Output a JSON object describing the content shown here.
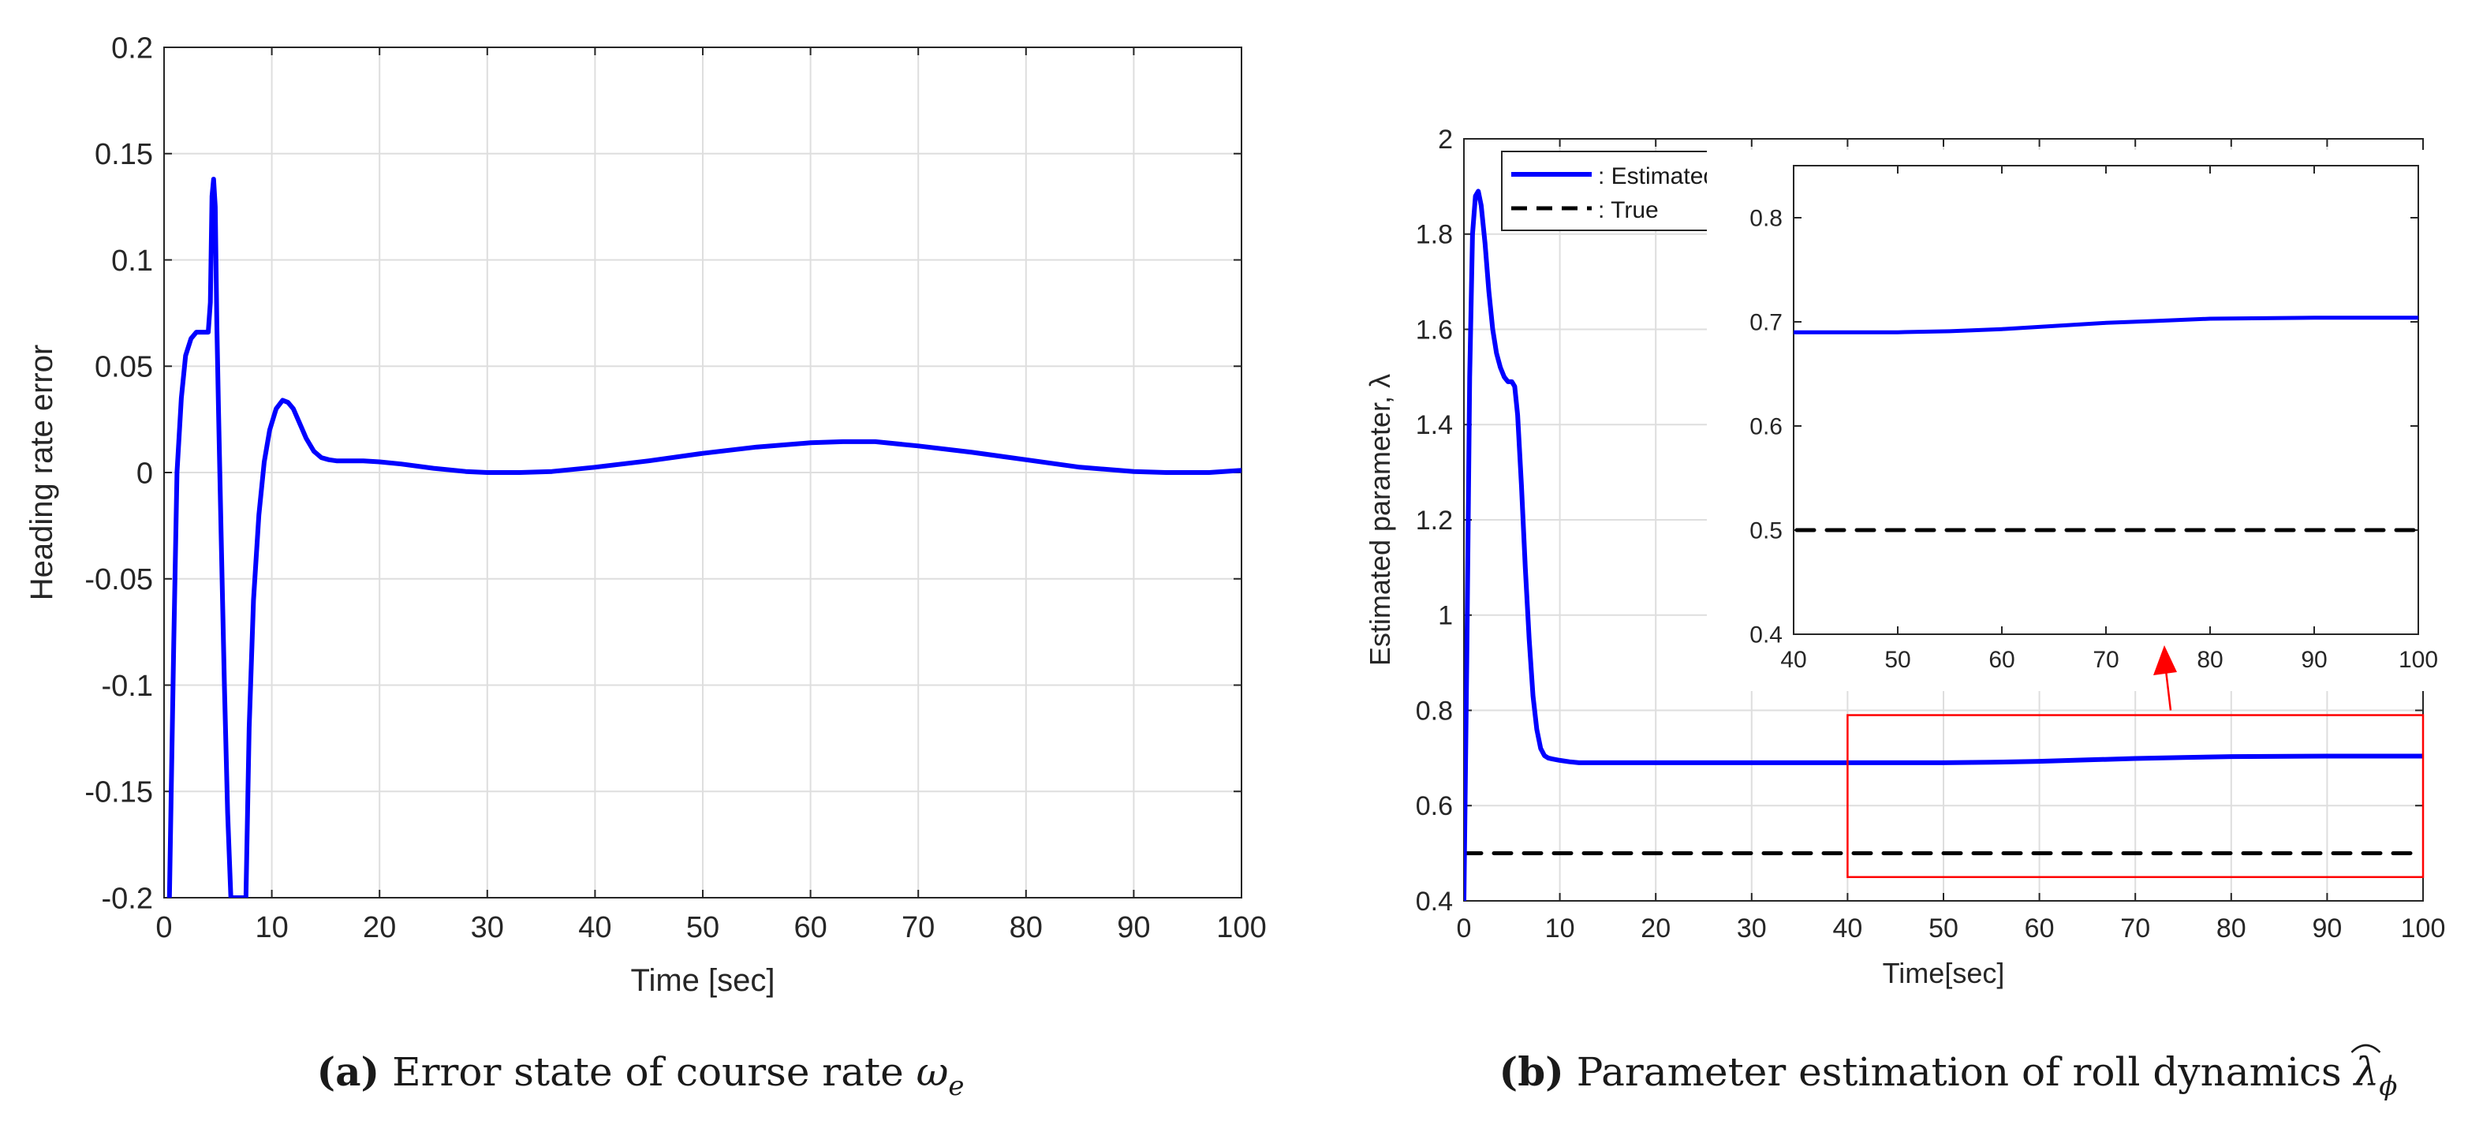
{
  "chart_data": [
    {
      "panel": "a",
      "type": "line",
      "title": "",
      "xlabel": "Time [sec]",
      "ylabel": "Heading rate error",
      "xlim": [
        0,
        100
      ],
      "ylim": [
        -0.2,
        0.2
      ],
      "xticks": [
        "0",
        "10",
        "20",
        "30",
        "40",
        "50",
        "60",
        "70",
        "80",
        "90",
        "100"
      ],
      "yticks": [
        "-0.2",
        "-0.15",
        "-0.1",
        "-0.05",
        "0",
        "0.05",
        "0.1",
        "0.15",
        "0.2"
      ],
      "grid": true,
      "line_color": "#0000ff",
      "caption": {
        "letter": "(a)",
        "text": " Error state of course rate ",
        "symbol": "ω",
        "subscript": "e"
      },
      "series": [
        {
          "x": [
            0.5,
            0.9,
            1.2,
            1.6,
            2.0,
            2.5,
            3.0,
            3.4,
            3.8,
            4.1,
            4.3,
            4.45,
            4.6,
            4.75,
            4.9,
            5.05,
            5.3,
            5.6,
            5.9,
            6.2,
            7.6,
            7.9,
            8.3,
            8.8,
            9.3,
            9.8,
            10.4,
            11.0,
            11.5,
            12.0,
            12.6,
            13.2,
            13.9,
            14.6,
            15.3,
            16.0,
            17.0,
            18.5,
            20.0,
            22,
            25,
            28,
            30,
            33,
            36,
            40,
            45,
            50,
            55,
            60,
            63,
            66,
            70,
            75,
            80,
            85,
            90,
            93,
            95,
            97,
            100
          ],
          "y": [
            -0.2,
            -0.08,
            0.0,
            0.035,
            0.055,
            0.063,
            0.066,
            0.066,
            0.066,
            0.066,
            0.08,
            0.13,
            0.138,
            0.125,
            0.07,
            0.03,
            -0.03,
            -0.1,
            -0.16,
            -0.2,
            -0.2,
            -0.12,
            -0.06,
            -0.02,
            0.005,
            0.02,
            0.03,
            0.034,
            0.033,
            0.03,
            0.023,
            0.016,
            0.01,
            0.007,
            0.006,
            0.0055,
            0.0055,
            0.0055,
            0.005,
            0.004,
            0.002,
            0.0005,
            0.0,
            0.0,
            0.0005,
            0.0025,
            0.0055,
            0.009,
            0.012,
            0.014,
            0.0145,
            0.0145,
            0.0125,
            0.0095,
            0.006,
            0.0025,
            0.0005,
            0.0,
            0.0,
            0.0,
            0.001
          ]
        }
      ]
    },
    {
      "panel": "b",
      "type": "line",
      "title": "",
      "xlabel": "Time[sec]",
      "ylabel": "Estimated parameter, λ",
      "xlim": [
        0,
        100
      ],
      "ylim": [
        0.4,
        2
      ],
      "xticks": [
        "0",
        "10",
        "20",
        "30",
        "40",
        "50",
        "60",
        "70",
        "80",
        "90",
        "100"
      ],
      "yticks": [
        "0.4",
        "0.6",
        "0.8",
        "1",
        "1.2",
        "1.4",
        "1.6",
        "1.8",
        "2"
      ],
      "grid": true,
      "legend": {
        "position": "top-left",
        "entries": [
          ": Estimated",
          ": True"
        ]
      },
      "caption": {
        "letter": "(b)",
        "text": " Parameter estimation of roll dynamics ",
        "symbol": "λ",
        "subscript": "ϕ"
      },
      "series": [
        {
          "style": "solid",
          "color": "#0000ff",
          "x": [
            0,
            0.3,
            0.6,
            0.9,
            1.2,
            1.5,
            1.8,
            2.2,
            2.6,
            3.0,
            3.4,
            3.8,
            4.2,
            4.6,
            5.0,
            5.3,
            5.6,
            6.0,
            6.4,
            6.8,
            7.2,
            7.6,
            8.0,
            8.4,
            8.8,
            9.2,
            10,
            11,
            12,
            14,
            20,
            30,
            40,
            50,
            55,
            60,
            65,
            70,
            75,
            80,
            90,
            100
          ],
          "y": [
            0.4,
            0.9,
            1.5,
            1.8,
            1.88,
            1.89,
            1.86,
            1.78,
            1.68,
            1.6,
            1.55,
            1.52,
            1.5,
            1.49,
            1.49,
            1.48,
            1.42,
            1.27,
            1.1,
            0.95,
            0.83,
            0.76,
            0.72,
            0.705,
            0.7,
            0.698,
            0.695,
            0.692,
            0.69,
            0.69,
            0.69,
            0.69,
            0.69,
            0.69,
            0.691,
            0.693,
            0.696,
            0.699,
            0.701,
            0.703,
            0.704,
            0.704
          ]
        },
        {
          "style": "dashed",
          "color": "#000000",
          "x": [
            0,
            100
          ],
          "y": [
            0.5,
            0.5
          ]
        }
      ],
      "zoom_box": {
        "xlim": [
          40,
          100
        ],
        "ylim": [
          0.45,
          0.79
        ],
        "color": "#ff0000"
      },
      "inset": {
        "xlim": [
          40,
          100
        ],
        "ylim": [
          0.4,
          0.85
        ],
        "xticks": [
          "40",
          "50",
          "60",
          "70",
          "80",
          "90",
          "100"
        ],
        "yticks": [
          "0.4",
          "0.5",
          "0.6",
          "0.7",
          "0.8"
        ]
      }
    }
  ]
}
